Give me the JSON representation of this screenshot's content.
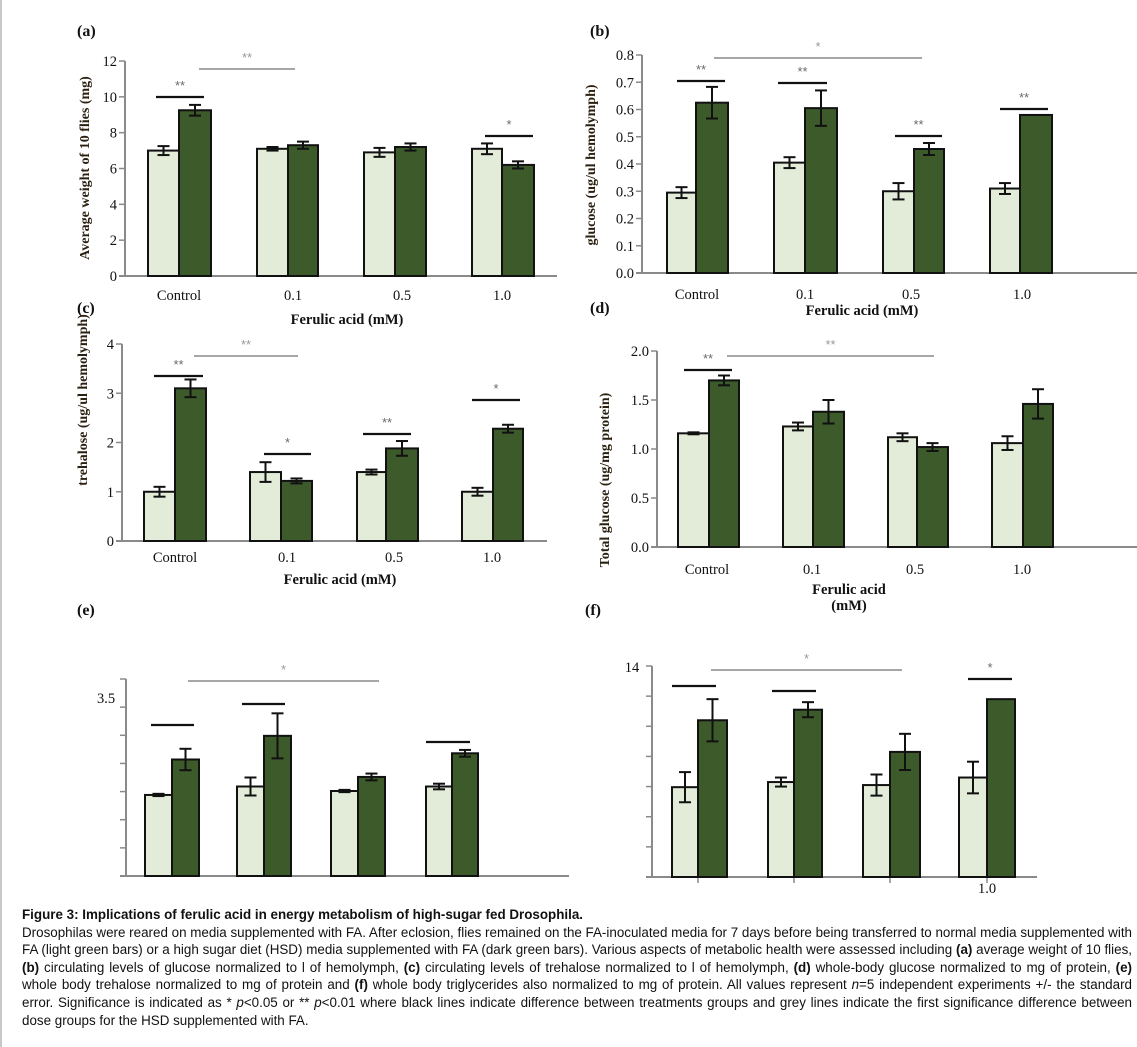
{
  "colors": {
    "low_sugar_bar": "#e2ecd8",
    "hsd_bar": "#3c5a2a",
    "bar_outline": "#111111",
    "significance_black": "#111111",
    "significance_grey": "#8a8a8a",
    "axis": "#8a8a8a"
  },
  "chart_data": [
    {
      "panel": "(a)",
      "type": "bar",
      "ylabel": "Average weight of 10 flies (mg)",
      "xlabel": "Ferulic acid (mM)",
      "ylim": [
        0,
        12
      ],
      "yticks": [
        "0",
        "2",
        "4",
        "6",
        "8",
        "10",
        "12"
      ],
      "ytick_step": 2,
      "categories": [
        "Control",
        "0.1",
        "0.5",
        "1.0"
      ],
      "series": [
        {
          "color": "light",
          "values": [
            7.0,
            7.1,
            6.9,
            7.1
          ],
          "errors": [
            0.25,
            0.1,
            0.25,
            0.3
          ]
        },
        {
          "color": "dark",
          "values": [
            9.25,
            7.3,
            7.2,
            6.2
          ],
          "errors": [
            0.3,
            0.2,
            0.2,
            0.2
          ]
        }
      ],
      "significance": [
        {
          "label": "**",
          "line": "black",
          "between": [
            "Control",
            "Control"
          ]
        },
        {
          "label": "**",
          "line": "grey",
          "between": [
            "Control",
            "0.1"
          ]
        },
        {
          "label": "*",
          "line": "black",
          "between": [
            "1.0",
            "1.0"
          ]
        }
      ]
    },
    {
      "panel": "(b)",
      "type": "bar",
      "ylabel": "glucose (ug/ul  hemolymph)",
      "xlabel": "Ferulic acid (mM)",
      "ylim": [
        0,
        0.8
      ],
      "yticks": [
        "0.0",
        "0.1",
        "0.2",
        "0.3",
        "0.4",
        "0.5",
        "0.6",
        "0.7",
        "0.8"
      ],
      "ytick_step": 0.1,
      "categories": [
        "Control",
        "0.1",
        "0.5",
        "1.0"
      ],
      "series": [
        {
          "color": "light",
          "values": [
            0.295,
            0.405,
            0.3,
            0.31
          ],
          "errors": [
            0.02,
            0.02,
            0.03,
            0.02
          ]
        },
        {
          "color": "dark",
          "values": [
            0.625,
            0.605,
            0.455,
            0.58
          ],
          "errors": [
            0.058,
            0.065,
            0.022,
            0
          ]
        }
      ],
      "significance": [
        {
          "label": "**",
          "line": "black",
          "between": [
            "Control",
            "Control"
          ]
        },
        {
          "label": "**",
          "line": "black",
          "between": [
            "0.1",
            "0.1"
          ]
        },
        {
          "label": "**",
          "line": "black",
          "between": [
            "0.5",
            "0.5"
          ]
        },
        {
          "label": "**",
          "line": "black",
          "between": [
            "1.0",
            "1.0"
          ]
        },
        {
          "label": "*",
          "line": "grey",
          "between": [
            "Control",
            "0.5"
          ]
        }
      ]
    },
    {
      "panel": "(c)",
      "type": "bar",
      "ylabel": "trehalose  (ug/ul  hemolymph)",
      "xlabel": "Ferulic acid (mM)",
      "ylim": [
        0,
        4
      ],
      "yticks": [
        "0",
        "1",
        "2",
        "3",
        "4"
      ],
      "ytick_step": 1,
      "categories": [
        "Control",
        "0.1",
        "0.5",
        "1.0"
      ],
      "series": [
        {
          "color": "light",
          "values": [
            1.0,
            1.4,
            1.4,
            1.0
          ],
          "errors": [
            0.1,
            0.2,
            0.05,
            0.08
          ]
        },
        {
          "color": "dark",
          "values": [
            3.1,
            1.22,
            1.88,
            2.28
          ],
          "errors": [
            0.18,
            0.05,
            0.15,
            0.08
          ]
        }
      ],
      "significance": [
        {
          "label": "**",
          "line": "black",
          "between": [
            "Control",
            "Control"
          ]
        },
        {
          "label": "**",
          "line": "grey",
          "between": [
            "Control",
            "0.1"
          ]
        },
        {
          "label": "*",
          "line": "black",
          "between": [
            "0.1",
            "0.1"
          ]
        },
        {
          "label": "**",
          "line": "black",
          "between": [
            "0.5",
            "0.5"
          ]
        },
        {
          "label": "*",
          "line": "black",
          "between": [
            "1.0",
            "1.0"
          ]
        }
      ]
    },
    {
      "panel": "(d)",
      "type": "bar",
      "ylabel": "Total glucose (ug/mg protein)",
      "xlabel": "Ferulic acid",
      "xlabel_line2": "(mM)",
      "ylim": [
        0,
        2.0
      ],
      "yticks": [
        "0.0",
        "0.5",
        "1.0",
        "1.5",
        "2.0"
      ],
      "ytick_step": 0.5,
      "categories": [
        "Control",
        "0.1",
        "0.5",
        "1.0"
      ],
      "series": [
        {
          "color": "light",
          "values": [
            1.16,
            1.23,
            1.12,
            1.06
          ],
          "errors": [
            0.01,
            0.04,
            0.04,
            0.07
          ]
        },
        {
          "color": "dark",
          "values": [
            1.7,
            1.38,
            1.02,
            1.46
          ],
          "errors": [
            0.05,
            0.12,
            0.04,
            0.15
          ]
        }
      ],
      "significance": [
        {
          "label": "**",
          "line": "black",
          "between": [
            "Control",
            "Control"
          ]
        },
        {
          "label": "**",
          "line": "grey",
          "between": [
            "Control",
            "0.5"
          ]
        }
      ]
    },
    {
      "panel": "(e)",
      "type": "bar",
      "ylabel": "",
      "xlabel": "",
      "ylim": [
        0,
        3.5
      ],
      "yticks": [
        "3.5"
      ],
      "ytick_step": 0.5,
      "categories": [
        "",
        "",
        "",
        ""
      ],
      "series": [
        {
          "color": "light",
          "values": [
            1.44,
            1.59,
            1.51,
            1.59
          ],
          "errors": [
            0.02,
            0.16,
            0.02,
            0.05
          ]
        },
        {
          "color": "dark",
          "values": [
            2.07,
            2.49,
            1.76,
            2.18
          ],
          "errors": [
            0.19,
            0.4,
            0.06,
            0.06
          ]
        }
      ],
      "significance": [
        {
          "label": "",
          "line": "black",
          "between": [
            "group1",
            "group1"
          ]
        },
        {
          "label": "",
          "line": "black",
          "between": [
            "group2",
            "group2"
          ]
        },
        {
          "label": "",
          "line": "black",
          "between": [
            "group4",
            "group4"
          ]
        },
        {
          "label": "*",
          "line": "grey",
          "between": [
            "group1",
            "group3"
          ]
        }
      ]
    },
    {
      "panel": "(f)",
      "type": "bar",
      "ylabel": "",
      "xlabel": "",
      "ylim": [
        0,
        14
      ],
      "yticks": [
        "14"
      ],
      "ytick_step": 2,
      "categories": [
        "",
        "",
        "",
        "1.0"
      ],
      "series": [
        {
          "color": "light",
          "values": [
            5.96,
            6.3,
            6.1,
            6.6
          ],
          "errors": [
            1.0,
            0.3,
            0.7,
            1.05
          ]
        },
        {
          "color": "dark",
          "values": [
            10.4,
            11.1,
            8.3,
            11.8
          ],
          "errors": [
            1.4,
            0.5,
            1.2,
            0
          ]
        }
      ],
      "significance": [
        {
          "label": "",
          "line": "black",
          "between": [
            "group1",
            "group1"
          ]
        },
        {
          "label": "",
          "line": "black",
          "between": [
            "group2",
            "group2"
          ]
        },
        {
          "label": "*",
          "line": "grey",
          "between": [
            "group1",
            "group3"
          ]
        },
        {
          "label": "*",
          "line": "black",
          "between": [
            "group4",
            "group4"
          ]
        }
      ]
    }
  ],
  "caption": {
    "title": "Figure 3: Implications of ferulic acid in energy metabolism of high-sugar fed Drosophila.",
    "segments": [
      {
        "t": "Drosophilas were reared on media supplemented with FA. After eclosion, flies remained on the FA-inoculated media for 7 days before being transferred to normal media supplemented with FA (light green bars) or a high sugar diet (HSD) media supplemented with FA (dark green bars). Various aspects of metabolic health were assessed including "
      },
      {
        "t": "(a)",
        "s": "b"
      },
      {
        "t": " average weight of 10 flies, "
      },
      {
        "t": "(b)",
        "s": "b"
      },
      {
        "t": " circulating levels of glucose normalized to l of hemolymph, "
      },
      {
        "t": "(c)",
        "s": "b"
      },
      {
        "t": " circulating levels of trehalose normalized to l of hemolymph, "
      },
      {
        "t": "(d)",
        "s": "b"
      },
      {
        "t": " whole-body glucose normalized to mg of protein, "
      },
      {
        "t": "(e)",
        "s": "b"
      },
      {
        "t": " whole body trehalose normalized to mg of protein and "
      },
      {
        "t": "(f)",
        "s": "b"
      },
      {
        "t": " whole body triglycerides also normalized to mg of protein. All values represent "
      },
      {
        "t": "n",
        "s": "i"
      },
      {
        "t": "=5 independent experiments +/- the standard error. Significance is indicated as * "
      },
      {
        "t": "p",
        "s": "i"
      },
      {
        "t": "<0.05 or ** "
      },
      {
        "t": "p",
        "s": "i"
      },
      {
        "t": "<0.01 where black lines indicate difference between treatments groups and grey lines indicate the first significance difference between dose groups for the HSD supplemented with FA."
      }
    ]
  }
}
